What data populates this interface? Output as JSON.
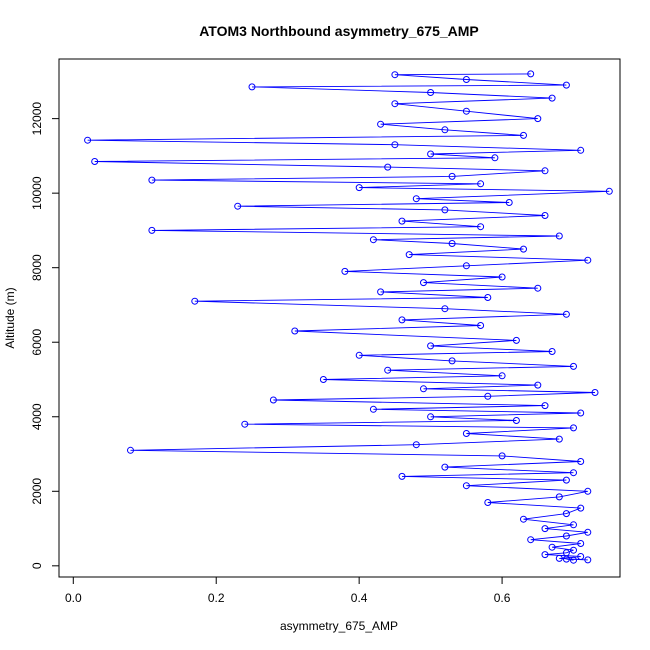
{
  "chart_data": {
    "type": "line",
    "title": "ATOM3 Northbound asymmetry_675_AMP",
    "xlabel": "asymmetry_675_AMP",
    "ylabel": "Altitude (m)",
    "xlim": [
      -0.02,
      0.765
    ],
    "ylim": [
      -300,
      13600
    ],
    "x_ticks": [
      0.0,
      0.2,
      0.4,
      0.6
    ],
    "x_tick_labels": [
      "0.0",
      "0.2",
      "0.4",
      "0.6"
    ],
    "y_ticks": [
      0,
      2000,
      4000,
      6000,
      8000,
      10000,
      12000
    ],
    "y_tick_labels": [
      "0",
      "2000",
      "4000",
      "6000",
      "8000",
      "10000",
      "12000"
    ],
    "grid": false,
    "legend": "none",
    "series": [
      {
        "color": "#0000ff",
        "marker": "open-circle",
        "points": [
          [
            0.7,
            150
          ],
          [
            0.69,
            180
          ],
          [
            0.72,
            160
          ],
          [
            0.68,
            200
          ],
          [
            0.71,
            250
          ],
          [
            0.66,
            300
          ],
          [
            0.69,
            350
          ],
          [
            0.7,
            420
          ],
          [
            0.67,
            500
          ],
          [
            0.71,
            600
          ],
          [
            0.64,
            700
          ],
          [
            0.69,
            800
          ],
          [
            0.72,
            900
          ],
          [
            0.66,
            1000
          ],
          [
            0.7,
            1100
          ],
          [
            0.63,
            1250
          ],
          [
            0.69,
            1400
          ],
          [
            0.71,
            1550
          ],
          [
            0.58,
            1700
          ],
          [
            0.68,
            1850
          ],
          [
            0.72,
            2000
          ],
          [
            0.55,
            2150
          ],
          [
            0.69,
            2300
          ],
          [
            0.46,
            2400
          ],
          [
            0.7,
            2500
          ],
          [
            0.52,
            2650
          ],
          [
            0.71,
            2800
          ],
          [
            0.6,
            2950
          ],
          [
            0.08,
            3100
          ],
          [
            0.48,
            3250
          ],
          [
            0.68,
            3400
          ],
          [
            0.55,
            3550
          ],
          [
            0.7,
            3700
          ],
          [
            0.24,
            3800
          ],
          [
            0.62,
            3900
          ],
          [
            0.5,
            4000
          ],
          [
            0.71,
            4100
          ],
          [
            0.42,
            4200
          ],
          [
            0.66,
            4300
          ],
          [
            0.28,
            4450
          ],
          [
            0.58,
            4550
          ],
          [
            0.73,
            4650
          ],
          [
            0.49,
            4750
          ],
          [
            0.65,
            4850
          ],
          [
            0.35,
            5000
          ],
          [
            0.6,
            5100
          ],
          [
            0.44,
            5250
          ],
          [
            0.7,
            5350
          ],
          [
            0.53,
            5500
          ],
          [
            0.4,
            5650
          ],
          [
            0.67,
            5750
          ],
          [
            0.5,
            5900
          ],
          [
            0.62,
            6050
          ],
          [
            0.31,
            6300
          ],
          [
            0.57,
            6450
          ],
          [
            0.46,
            6600
          ],
          [
            0.69,
            6750
          ],
          [
            0.52,
            6900
          ],
          [
            0.17,
            7100
          ],
          [
            0.58,
            7200
          ],
          [
            0.43,
            7350
          ],
          [
            0.65,
            7450
          ],
          [
            0.49,
            7600
          ],
          [
            0.6,
            7750
          ],
          [
            0.38,
            7900
          ],
          [
            0.55,
            8050
          ],
          [
            0.72,
            8200
          ],
          [
            0.47,
            8350
          ],
          [
            0.63,
            8500
          ],
          [
            0.53,
            8650
          ],
          [
            0.42,
            8750
          ],
          [
            0.68,
            8850
          ],
          [
            0.11,
            9000
          ],
          [
            0.57,
            9100
          ],
          [
            0.46,
            9250
          ],
          [
            0.66,
            9400
          ],
          [
            0.52,
            9550
          ],
          [
            0.23,
            9650
          ],
          [
            0.61,
            9750
          ],
          [
            0.48,
            9850
          ],
          [
            0.75,
            10050
          ],
          [
            0.4,
            10150
          ],
          [
            0.57,
            10250
          ],
          [
            0.11,
            10350
          ],
          [
            0.53,
            10450
          ],
          [
            0.66,
            10600
          ],
          [
            0.44,
            10700
          ],
          [
            0.03,
            10850
          ],
          [
            0.59,
            10950
          ],
          [
            0.5,
            11050
          ],
          [
            0.71,
            11150
          ],
          [
            0.45,
            11300
          ],
          [
            0.02,
            11420
          ],
          [
            0.63,
            11550
          ],
          [
            0.52,
            11700
          ],
          [
            0.43,
            11850
          ],
          [
            0.65,
            12000
          ],
          [
            0.55,
            12200
          ],
          [
            0.45,
            12400
          ],
          [
            0.67,
            12550
          ],
          [
            0.5,
            12700
          ],
          [
            0.25,
            12850
          ],
          [
            0.69,
            12900
          ],
          [
            0.55,
            13050
          ],
          [
            0.45,
            13180
          ],
          [
            0.64,
            13200
          ]
        ]
      }
    ]
  }
}
